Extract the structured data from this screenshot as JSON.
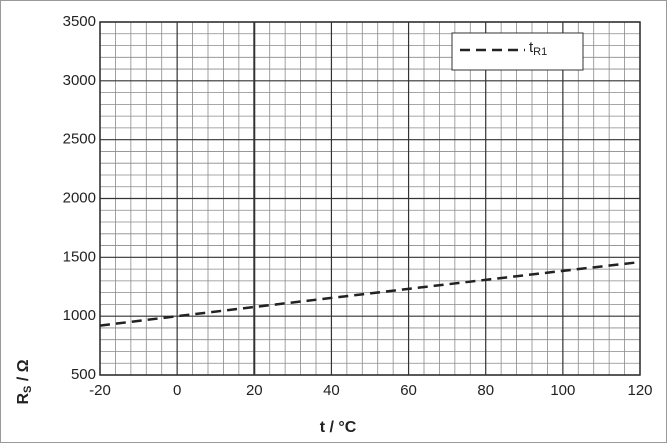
{
  "chart_data": {
    "type": "line",
    "xlabel": "t / °C",
    "ylabel": "RS / Ω",
    "x": [
      -20,
      0,
      20,
      40,
      60,
      80,
      100,
      120
    ],
    "series": [
      {
        "name": "tR1",
        "color": "#222222",
        "dashed": true,
        "values": [
          920,
          1000,
          1078,
          1155,
          1232,
          1309,
          1385,
          1460
        ]
      }
    ],
    "xlim": [
      -20,
      120
    ],
    "xticks": [
      -20,
      0,
      20,
      40,
      60,
      80,
      100,
      120
    ],
    "ylim": [
      500,
      3500
    ],
    "yticks": [
      500,
      1000,
      1500,
      2000,
      2500,
      3000,
      3500
    ],
    "grid": true,
    "minor_divisions": 5,
    "legend": "upper right"
  }
}
